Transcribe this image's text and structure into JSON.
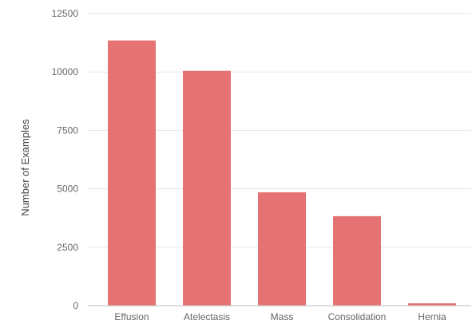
{
  "chart_data": {
    "type": "bar",
    "title": "",
    "xlabel": "",
    "ylabel": "Number of Examples",
    "categories": [
      "Effusion",
      "Atelectasis",
      "Mass",
      "Consolidation",
      "Hernia"
    ],
    "values": [
      11350,
      10050,
      4850,
      3830,
      100
    ],
    "ylim": [
      0,
      12500
    ],
    "yticks": [
      0,
      2500,
      5000,
      7500,
      10000,
      12500
    ],
    "ytick_labels": [
      "0",
      "2500",
      "5000",
      "7500",
      "10000",
      "12500"
    ],
    "grid": true,
    "legend": "none",
    "bar_color": "#e57373",
    "grid_color": "#e6e6e6"
  }
}
